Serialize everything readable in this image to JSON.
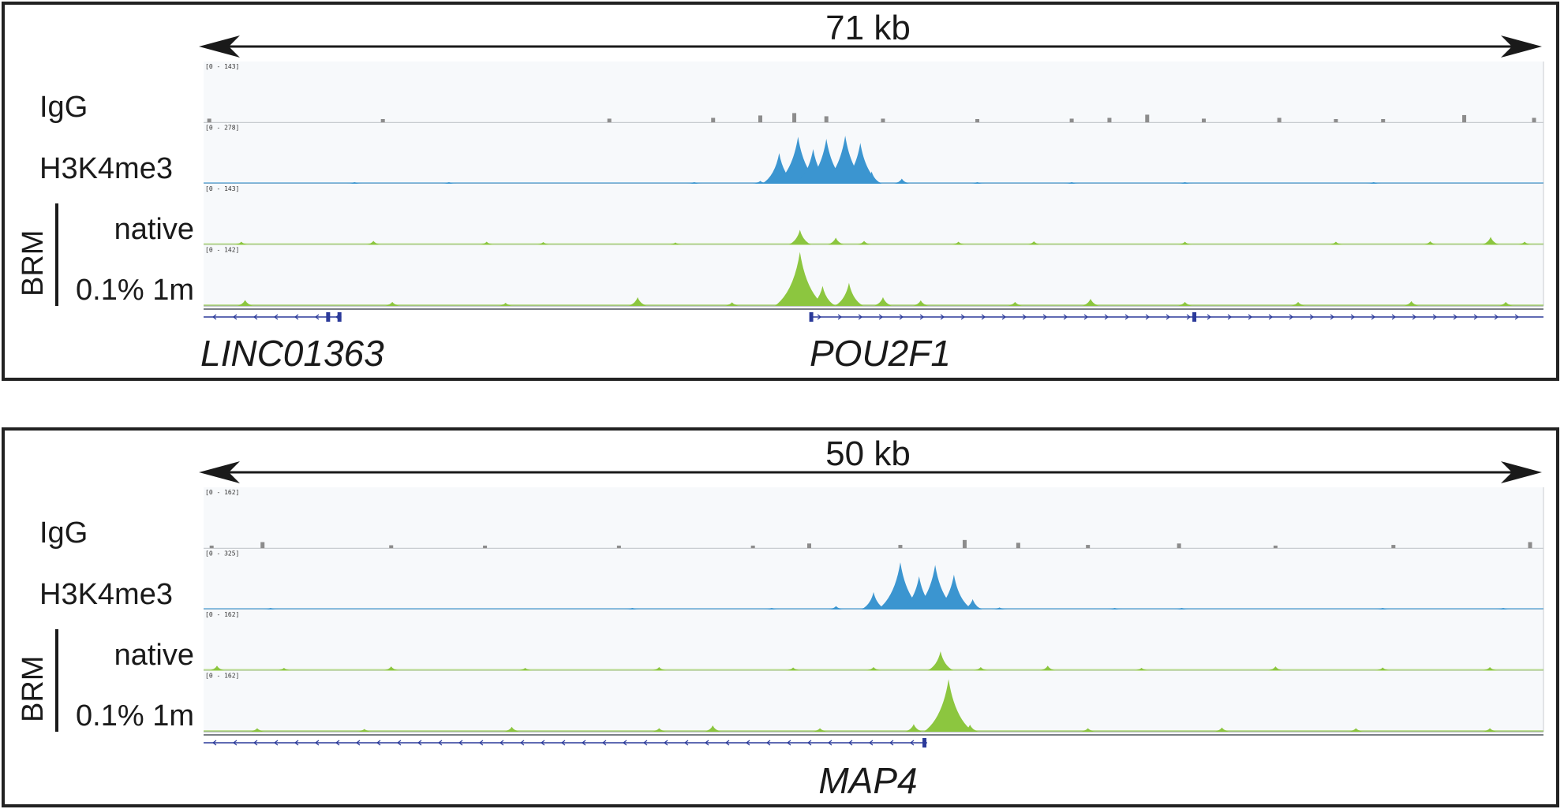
{
  "colors": {
    "igg": "#8c8c8c",
    "h3k4me3": "#3b95d0",
    "brm": "#8cc63f",
    "gene": "#2b3a9a",
    "track_bg": "#f7f9fb",
    "frame": "#222222"
  },
  "track_labels": {
    "igg": "IgG",
    "h3k4me3": "H3K4me3",
    "native": "native",
    "brm_1m": "0.1% 1m",
    "group": "BRM"
  },
  "chart_data": [
    {
      "type": "area",
      "scale_label": "71 kb",
      "x_range_kb": [
        0,
        71
      ],
      "tracks": [
        {
          "id": "igg",
          "label": "IgG",
          "range": "[0 - 143]",
          "ymax": 143,
          "peaks": [
            {
              "x": 0.3,
              "y": 10
            },
            {
              "x": 9.5,
              "y": 9
            },
            {
              "x": 21.5,
              "y": 10
            },
            {
              "x": 27,
              "y": 12
            },
            {
              "x": 29.5,
              "y": 18
            },
            {
              "x": 31.3,
              "y": 24
            },
            {
              "x": 33,
              "y": 16
            },
            {
              "x": 36,
              "y": 10
            },
            {
              "x": 41,
              "y": 9
            },
            {
              "x": 46,
              "y": 10
            },
            {
              "x": 48,
              "y": 12
            },
            {
              "x": 50,
              "y": 20
            },
            {
              "x": 53,
              "y": 10
            },
            {
              "x": 57,
              "y": 12
            },
            {
              "x": 60,
              "y": 9
            },
            {
              "x": 62.5,
              "y": 9
            },
            {
              "x": 66.8,
              "y": 19
            },
            {
              "x": 70.5,
              "y": 12
            }
          ]
        },
        {
          "id": "h3k4me3",
          "label": "H3K4me3",
          "range": "[0 - 278]",
          "ymax": 278,
          "peaks": [
            {
              "x": 29.5,
              "y": 14
            },
            {
              "x": 30.5,
              "y": 150
            },
            {
              "x": 31.5,
              "y": 230
            },
            {
              "x": 32.3,
              "y": 170
            },
            {
              "x": 33,
              "y": 220
            },
            {
              "x": 34,
              "y": 235
            },
            {
              "x": 34.8,
              "y": 200
            },
            {
              "x": 35.4,
              "y": 60
            },
            {
              "x": 37,
              "y": 25
            },
            {
              "x": 8,
              "y": 4
            },
            {
              "x": 13,
              "y": 4
            },
            {
              "x": 26,
              "y": 5
            },
            {
              "x": 41,
              "y": 5
            },
            {
              "x": 46,
              "y": 4
            },
            {
              "x": 52,
              "y": 4
            },
            {
              "x": 62,
              "y": 4
            }
          ]
        },
        {
          "id": "brm_native",
          "label": "native",
          "range": "[0 - 143]",
          "ymax": 143,
          "peaks": [
            {
              "x": 2,
              "y": 8
            },
            {
              "x": 9,
              "y": 10
            },
            {
              "x": 15,
              "y": 8
            },
            {
              "x": 18,
              "y": 7
            },
            {
              "x": 25,
              "y": 6
            },
            {
              "x": 31.6,
              "y": 38
            },
            {
              "x": 33.5,
              "y": 18
            },
            {
              "x": 35,
              "y": 10
            },
            {
              "x": 40,
              "y": 8
            },
            {
              "x": 44,
              "y": 9
            },
            {
              "x": 52,
              "y": 8
            },
            {
              "x": 60,
              "y": 8
            },
            {
              "x": 65,
              "y": 9
            },
            {
              "x": 68.2,
              "y": 20
            },
            {
              "x": 70,
              "y": 8
            }
          ]
        },
        {
          "id": "brm_1m",
          "label": "0.1% 1m",
          "range": "[0 - 142]",
          "ymax": 142,
          "peaks": [
            {
              "x": 2.2,
              "y": 15
            },
            {
              "x": 10,
              "y": 10
            },
            {
              "x": 16,
              "y": 8
            },
            {
              "x": 23,
              "y": 22
            },
            {
              "x": 28,
              "y": 9
            },
            {
              "x": 31.6,
              "y": 135
            },
            {
              "x": 32.8,
              "y": 50
            },
            {
              "x": 34.2,
              "y": 58
            },
            {
              "x": 36,
              "y": 22
            },
            {
              "x": 38,
              "y": 14
            },
            {
              "x": 43,
              "y": 10
            },
            {
              "x": 47,
              "y": 18
            },
            {
              "x": 52,
              "y": 10
            },
            {
              "x": 58,
              "y": 10
            },
            {
              "x": 64,
              "y": 12
            },
            {
              "x": 69,
              "y": 10
            }
          ]
        }
      ],
      "genes": [
        {
          "name": "LINC01363",
          "start": 0,
          "end": 7.3,
          "strand": "-",
          "exons": [
            6.6,
            7.2
          ]
        },
        {
          "name": "POU2F1",
          "start": 32.2,
          "end": 71,
          "strand": "+",
          "exons": [
            32.2,
            52.5
          ]
        }
      ]
    },
    {
      "type": "area",
      "scale_label": "50 kb",
      "x_range_kb": [
        0,
        50
      ],
      "tracks": [
        {
          "id": "igg",
          "label": "IgG",
          "range": "[0 - 162]",
          "ymax": 162,
          "peaks": [
            {
              "x": 0.3,
              "y": 8
            },
            {
              "x": 2.2,
              "y": 18
            },
            {
              "x": 7,
              "y": 9
            },
            {
              "x": 10.5,
              "y": 8
            },
            {
              "x": 15.5,
              "y": 8
            },
            {
              "x": 20.5,
              "y": 8
            },
            {
              "x": 22.6,
              "y": 14
            },
            {
              "x": 26,
              "y": 10
            },
            {
              "x": 28.4,
              "y": 24
            },
            {
              "x": 30.4,
              "y": 16
            },
            {
              "x": 33,
              "y": 10
            },
            {
              "x": 36.4,
              "y": 14
            },
            {
              "x": 40,
              "y": 8
            },
            {
              "x": 44.4,
              "y": 10
            },
            {
              "x": 49.5,
              "y": 18
            }
          ]
        },
        {
          "id": "h3k4me3",
          "label": "H3K4me3",
          "range": "[0 - 325]",
          "ymax": 325,
          "peaks": [
            {
              "x": 16,
              "y": 4
            },
            {
              "x": 23.6,
              "y": 20
            },
            {
              "x": 25,
              "y": 100
            },
            {
              "x": 26,
              "y": 270
            },
            {
              "x": 26.7,
              "y": 190
            },
            {
              "x": 27.3,
              "y": 255
            },
            {
              "x": 28,
              "y": 200
            },
            {
              "x": 28.7,
              "y": 60
            },
            {
              "x": 29.7,
              "y": 12
            },
            {
              "x": 2.5,
              "y": 4
            },
            {
              "x": 21.2,
              "y": 4
            },
            {
              "x": 34,
              "y": 4
            },
            {
              "x": 36.5,
              "y": 5
            },
            {
              "x": 44,
              "y": 4
            },
            {
              "x": 48.5,
              "y": 5
            }
          ]
        },
        {
          "id": "brm_native",
          "label": "native",
          "range": "[0 - 162]",
          "ymax": 162,
          "peaks": [
            {
              "x": 0.5,
              "y": 14
            },
            {
              "x": 3,
              "y": 8
            },
            {
              "x": 7,
              "y": 12
            },
            {
              "x": 12,
              "y": 8
            },
            {
              "x": 17,
              "y": 10
            },
            {
              "x": 22,
              "y": 9
            },
            {
              "x": 25,
              "y": 10
            },
            {
              "x": 27.5,
              "y": 55
            },
            {
              "x": 29,
              "y": 10
            },
            {
              "x": 31.5,
              "y": 14
            },
            {
              "x": 35,
              "y": 8
            },
            {
              "x": 40,
              "y": 12
            },
            {
              "x": 44,
              "y": 9
            },
            {
              "x": 48,
              "y": 10
            }
          ]
        },
        {
          "id": "brm_1m",
          "label": "0.1% 1m",
          "range": "[0 - 162]",
          "ymax": 162,
          "peaks": [
            {
              "x": 2,
              "y": 10
            },
            {
              "x": 6,
              "y": 8
            },
            {
              "x": 11.5,
              "y": 14
            },
            {
              "x": 17,
              "y": 10
            },
            {
              "x": 19,
              "y": 18
            },
            {
              "x": 23,
              "y": 10
            },
            {
              "x": 26.5,
              "y": 22
            },
            {
              "x": 27.8,
              "y": 150
            },
            {
              "x": 28.6,
              "y": 20
            },
            {
              "x": 33,
              "y": 10
            },
            {
              "x": 38,
              "y": 12
            },
            {
              "x": 43,
              "y": 10
            },
            {
              "x": 48,
              "y": 10
            }
          ]
        }
      ],
      "genes": [
        {
          "name": "MAP4",
          "start": 0,
          "end": 27,
          "strand": "-",
          "exons": [
            26.9
          ]
        }
      ]
    }
  ]
}
